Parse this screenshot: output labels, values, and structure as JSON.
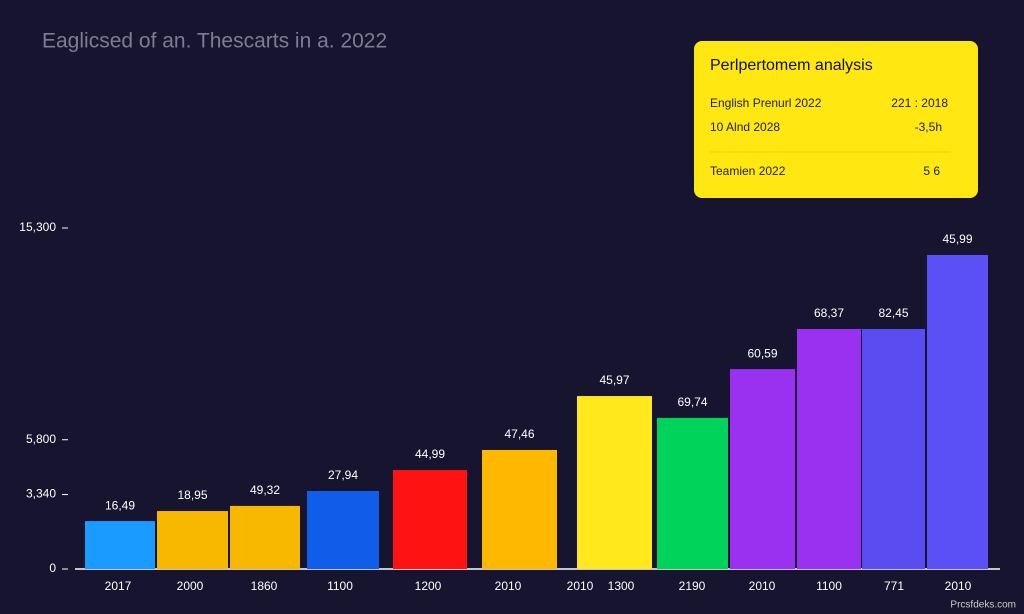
{
  "chart_data": {
    "type": "bar",
    "title": "Eaglicsed of an. Thescarts in a. 2022",
    "categories": [
      "2017",
      "2000",
      "1860",
      "1100",
      "1200",
      "2010",
      "1300",
      "2190",
      "2010",
      "1100",
      "771",
      "2010"
    ],
    "extra_x_labels": [
      "2010"
    ],
    "values": [
      2150,
      2600,
      2830,
      3500,
      4440,
      5340,
      7760,
      6780,
      8970,
      10770,
      10770,
      14090
    ],
    "bar_annotations": [
      "16,49",
      "18,95",
      "49,32",
      "27,94",
      "44,99",
      "47,46",
      "45,97",
      "69,74",
      "60,59",
      "68,37",
      "82,45",
      "45,99"
    ],
    "colors": [
      "#1a9bff",
      "#f9b800",
      "#f9b800",
      "#0f5de8",
      "#ff1212",
      "#ffb800",
      "#ffe81c",
      "#00d35a",
      "#9a30f0",
      "#9a30f0",
      "#5b4cf2",
      "#5b4ff6"
    ],
    "ylim": [
      0,
      15300
    ],
    "yticks": [
      0,
      {
        "value": 3340,
        "label": "3,340"
      },
      {
        "value": 5800,
        "label": "5,800"
      },
      {
        "value": 15300,
        "label": "15,300"
      }
    ],
    "grid": false,
    "info_box": {
      "title": "Perlpertomem analysis",
      "rows": [
        [
          "English Prenurl 2022",
          "221 : 2018"
        ],
        [
          "10 Alnd 2028",
          "-3,5h"
        ],
        [
          "Teamien 2022",
          "5 6"
        ]
      ]
    },
    "watermark": "Prcsfdeks.com"
  }
}
